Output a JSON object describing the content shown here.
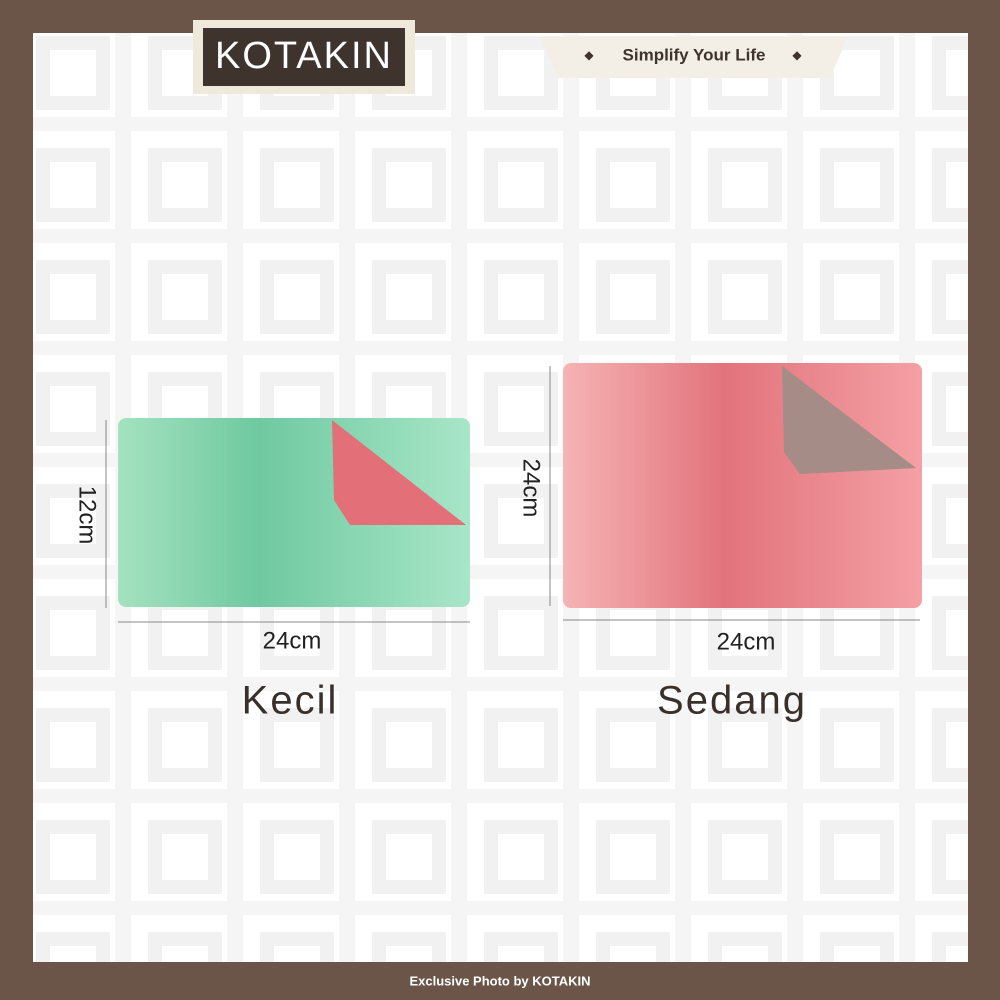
{
  "header": {
    "brand": "KOTAKIN",
    "tagline": "Simplify Your Life"
  },
  "products": [
    {
      "name": "Kecil",
      "width": "24cm",
      "height": "12cm"
    },
    {
      "name": "Sedang",
      "width": "24cm",
      "height": "24cm"
    }
  ],
  "footer": "Exclusive Photo by KOTAKIN"
}
